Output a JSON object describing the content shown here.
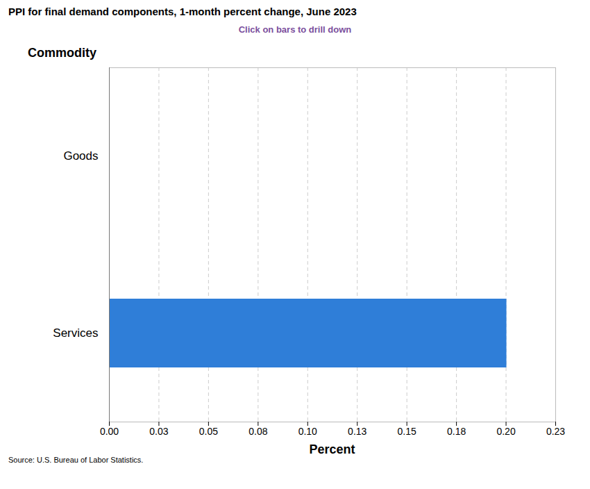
{
  "chart_data": {
    "type": "bar",
    "orientation": "horizontal",
    "title": "PPI for final demand components, 1-month percent change, June 2023",
    "subtitle": "Click on bars to drill down",
    "y_label": "Commodity",
    "x_label": "Percent",
    "caption": "Source: U.S. Bureau of Labor Statistics.",
    "categories": [
      "Goods",
      "Services"
    ],
    "values": [
      0.0,
      0.2
    ],
    "colors": [
      "#8b0000",
      "#2f7ed8"
    ],
    "xlim": [
      0,
      0.225
    ],
    "xticks": [
      {
        "value": 0,
        "label": "0.00"
      },
      {
        "value": 0.025,
        "label": "0.03"
      },
      {
        "value": 0.05,
        "label": "0.05"
      },
      {
        "value": 0.075,
        "label": "0.08"
      },
      {
        "value": 0.1,
        "label": "0.10"
      },
      {
        "value": 0.125,
        "label": "0.13"
      },
      {
        "value": 0.15,
        "label": "0.15"
      },
      {
        "value": 0.175,
        "label": "0.18"
      },
      {
        "value": 0.2,
        "label": "0.20"
      },
      {
        "value": 0.225,
        "label": "0.23"
      }
    ],
    "grid": true
  }
}
